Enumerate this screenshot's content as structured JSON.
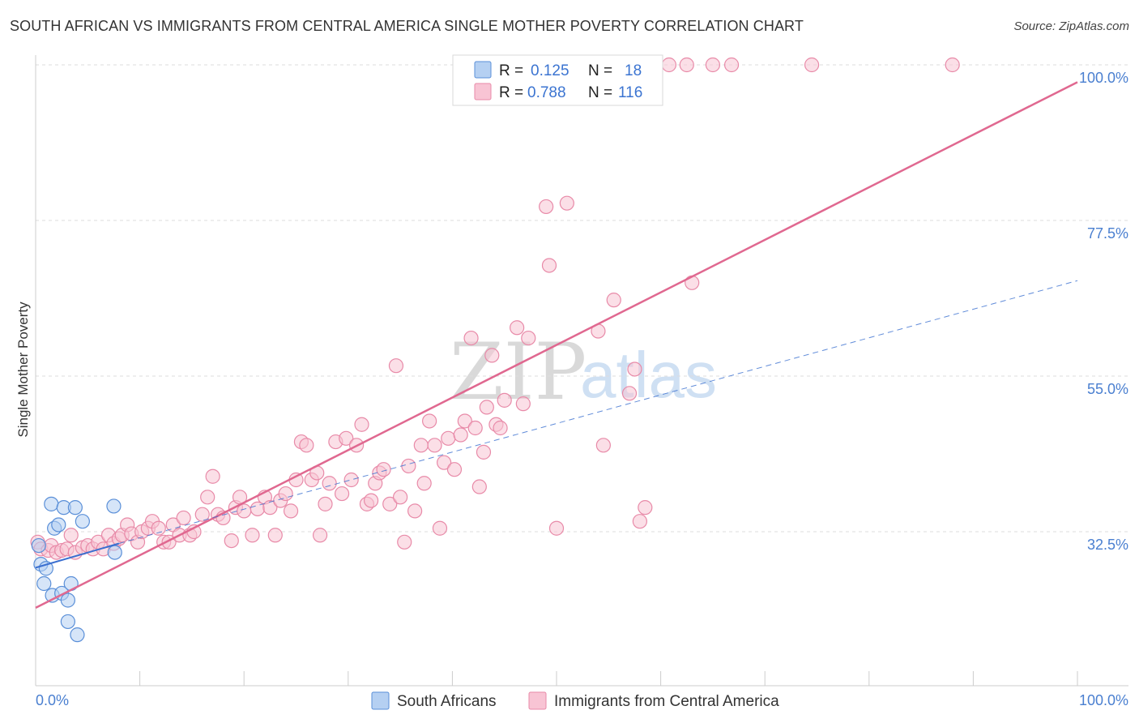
{
  "header": {
    "title": "SOUTH AFRICAN VS IMMIGRANTS FROM CENTRAL AMERICA SINGLE MOTHER POVERTY CORRELATION CHART",
    "source": "Source: ZipAtlas.com"
  },
  "watermark": {
    "left": "ZIP",
    "right": "atlas"
  },
  "colors": {
    "blue_fill": "#b5d0f2",
    "blue_stroke": "#5a8fd8",
    "blue_line": "#3a6fd0",
    "pink_fill": "#f8c4d4",
    "pink_stroke": "#e88aa8",
    "pink_line": "#e06890",
    "tick_text": "#4a7fd0",
    "grid": "#dddddd"
  },
  "chart_data": {
    "type": "scatter",
    "title": "SOUTH AFRICAN VS IMMIGRANTS FROM CENTRAL AMERICA SINGLE MOTHER POVERTY CORRELATION CHART",
    "xlabel": "",
    "ylabel": "Single Mother Poverty",
    "xlim": [
      0,
      100
    ],
    "ylim": [
      10.5,
      102.5
    ],
    "x_tick_labels": [
      "0.0%",
      "100.0%"
    ],
    "y_ticks": [
      32.5,
      55.0,
      77.5,
      100.0
    ],
    "y_tick_labels": [
      "32.5%",
      "55.0%",
      "77.5%",
      "100.0%"
    ],
    "legend_stats": [
      {
        "r_label": "R =",
        "r_value": "0.125",
        "n_label": "N =",
        "n_value": "18"
      },
      {
        "r_label": "R =",
        "r_value": "0.788",
        "n_label": "N =",
        "n_value": "116"
      }
    ],
    "series": [
      {
        "name": "South Africans",
        "color": "#b5d0f2",
        "points": [
          [
            0.3,
            30.5
          ],
          [
            0.5,
            27.8
          ],
          [
            0.8,
            25.0
          ],
          [
            1.0,
            27.2
          ],
          [
            1.5,
            36.5
          ],
          [
            1.6,
            23.3
          ],
          [
            1.8,
            33.0
          ],
          [
            2.2,
            33.5
          ],
          [
            2.5,
            23.6
          ],
          [
            2.7,
            36.0
          ],
          [
            3.1,
            19.5
          ],
          [
            3.1,
            22.6
          ],
          [
            3.4,
            25.0
          ],
          [
            3.8,
            36.0
          ],
          [
            4.0,
            17.6
          ],
          [
            4.5,
            34.0
          ],
          [
            7.5,
            36.2
          ],
          [
            7.6,
            29.5
          ]
        ],
        "trend": {
          "x": [
            0,
            8
          ],
          "y": [
            27.3,
            30.8
          ],
          "style": "solid"
        },
        "trend_extension": {
          "x": [
            8,
            100
          ],
          "y": [
            30.8,
            68.8
          ],
          "style": "dashed"
        }
      },
      {
        "name": "Immigrants from Central America",
        "color": "#f8c4d4",
        "points": [
          [
            0.2,
            31.0
          ],
          [
            0.5,
            30.0
          ],
          [
            1.2,
            29.8
          ],
          [
            1.5,
            30.5
          ],
          [
            2.0,
            29.5
          ],
          [
            2.5,
            29.8
          ],
          [
            3.0,
            30.0
          ],
          [
            3.4,
            32.0
          ],
          [
            3.8,
            29.5
          ],
          [
            4.5,
            30.2
          ],
          [
            5.0,
            30.5
          ],
          [
            5.5,
            30.0
          ],
          [
            6.0,
            31.0
          ],
          [
            6.5,
            30.0
          ],
          [
            7.0,
            32.0
          ],
          [
            7.5,
            30.8
          ],
          [
            8.0,
            31.5
          ],
          [
            8.3,
            32.0
          ],
          [
            8.8,
            33.5
          ],
          [
            9.2,
            32.2
          ],
          [
            9.8,
            31.0
          ],
          [
            10.2,
            32.5
          ],
          [
            10.8,
            33.0
          ],
          [
            11.2,
            34.0
          ],
          [
            11.8,
            33.0
          ],
          [
            12.3,
            31.0
          ],
          [
            12.8,
            31.0
          ],
          [
            13.2,
            33.5
          ],
          [
            13.8,
            32.0
          ],
          [
            14.2,
            34.5
          ],
          [
            14.8,
            32.0
          ],
          [
            15.2,
            32.5
          ],
          [
            16.0,
            35.0
          ],
          [
            16.5,
            37.5
          ],
          [
            17.0,
            40.5
          ],
          [
            17.5,
            35.0
          ],
          [
            18.0,
            34.5
          ],
          [
            18.8,
            31.2
          ],
          [
            19.2,
            36.0
          ],
          [
            19.6,
            37.5
          ],
          [
            20.0,
            35.5
          ],
          [
            20.8,
            32.0
          ],
          [
            21.3,
            35.8
          ],
          [
            22.0,
            37.5
          ],
          [
            22.5,
            36.0
          ],
          [
            23.0,
            32.0
          ],
          [
            23.5,
            37.0
          ],
          [
            24.0,
            38.0
          ],
          [
            24.5,
            35.5
          ],
          [
            25.0,
            40.0
          ],
          [
            25.5,
            45.5
          ],
          [
            26.0,
            45.0
          ],
          [
            26.5,
            40.0
          ],
          [
            27.0,
            41.0
          ],
          [
            27.3,
            32.0
          ],
          [
            27.8,
            36.5
          ],
          [
            28.2,
            39.5
          ],
          [
            28.8,
            45.5
          ],
          [
            29.4,
            38.0
          ],
          [
            29.8,
            46.0
          ],
          [
            30.3,
            40.0
          ],
          [
            30.8,
            45.0
          ],
          [
            31.3,
            48.0
          ],
          [
            31.8,
            36.5
          ],
          [
            32.2,
            37.0
          ],
          [
            32.6,
            39.5
          ],
          [
            33.0,
            41.0
          ],
          [
            33.4,
            41.5
          ],
          [
            34.0,
            36.5
          ],
          [
            34.6,
            56.5
          ],
          [
            35.0,
            37.5
          ],
          [
            35.4,
            31.0
          ],
          [
            35.8,
            42.0
          ],
          [
            36.4,
            35.5
          ],
          [
            37.0,
            45.0
          ],
          [
            37.3,
            39.5
          ],
          [
            37.8,
            48.5
          ],
          [
            38.3,
            45.0
          ],
          [
            38.8,
            33.0
          ],
          [
            39.2,
            42.5
          ],
          [
            39.6,
            46.0
          ],
          [
            40.2,
            41.5
          ],
          [
            40.8,
            46.5
          ],
          [
            41.2,
            48.5
          ],
          [
            41.8,
            60.5
          ],
          [
            42.2,
            47.5
          ],
          [
            42.6,
            39.0
          ],
          [
            43.0,
            44.0
          ],
          [
            43.3,
            50.5
          ],
          [
            43.8,
            58.0
          ],
          [
            44.2,
            48.0
          ],
          [
            44.6,
            47.5
          ],
          [
            45.0,
            51.5
          ],
          [
            46.2,
            62.0
          ],
          [
            46.8,
            51.0
          ],
          [
            47.3,
            60.5
          ],
          [
            49.0,
            79.5
          ],
          [
            49.3,
            71.0
          ],
          [
            50.0,
            33.0
          ],
          [
            51.0,
            80.0
          ],
          [
            54.0,
            61.5
          ],
          [
            54.5,
            45.0
          ],
          [
            55.5,
            66.0
          ],
          [
            57.0,
            52.5
          ],
          [
            57.5,
            56.0
          ],
          [
            58.0,
            34.0
          ],
          [
            58.5,
            36.0
          ],
          [
            60.8,
            100.0
          ],
          [
            62.5,
            100.0
          ],
          [
            63.0,
            68.5
          ],
          [
            65.0,
            100.0
          ],
          [
            66.8,
            100.0
          ],
          [
            74.5,
            100.0
          ],
          [
            88.0,
            100.0
          ]
        ],
        "trend": {
          "x": [
            0,
            100
          ],
          "y": [
            21.5,
            97.5
          ],
          "style": "solid"
        }
      }
    ]
  }
}
